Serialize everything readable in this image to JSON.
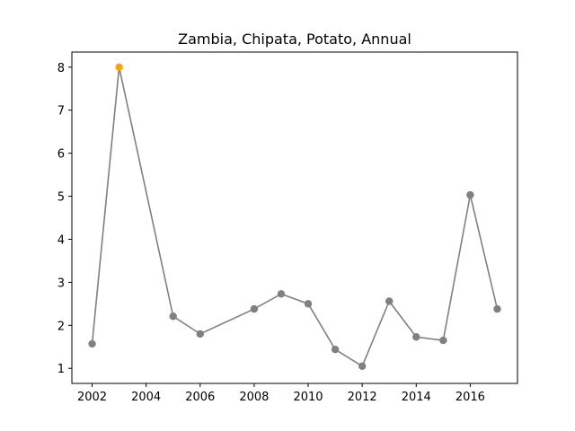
{
  "chart_data": {
    "type": "line",
    "title": "Zambia, Chipata, Potato, Annual",
    "xlabel": "",
    "ylabel": "",
    "xlim": [
      2001.25,
      2017.75
    ],
    "ylim": [
      0.65,
      8.35
    ],
    "x_ticks": [
      2002,
      2004,
      2006,
      2008,
      2010,
      2012,
      2014,
      2016
    ],
    "y_ticks": [
      1,
      2,
      3,
      4,
      5,
      6,
      7,
      8
    ],
    "grid": false,
    "series": [
      {
        "x": [
          2002,
          2003,
          2005,
          2006,
          2008,
          2009,
          2010,
          2011,
          2012,
          2013,
          2014,
          2015,
          2016,
          2017
        ],
        "y": [
          1.57,
          8.0,
          2.21,
          1.8,
          2.38,
          2.73,
          2.5,
          1.44,
          1.05,
          2.56,
          1.73,
          1.65,
          5.03,
          2.38
        ],
        "color": "#808080",
        "highlight_index": 1,
        "highlight_color": "#ffa500"
      }
    ]
  }
}
